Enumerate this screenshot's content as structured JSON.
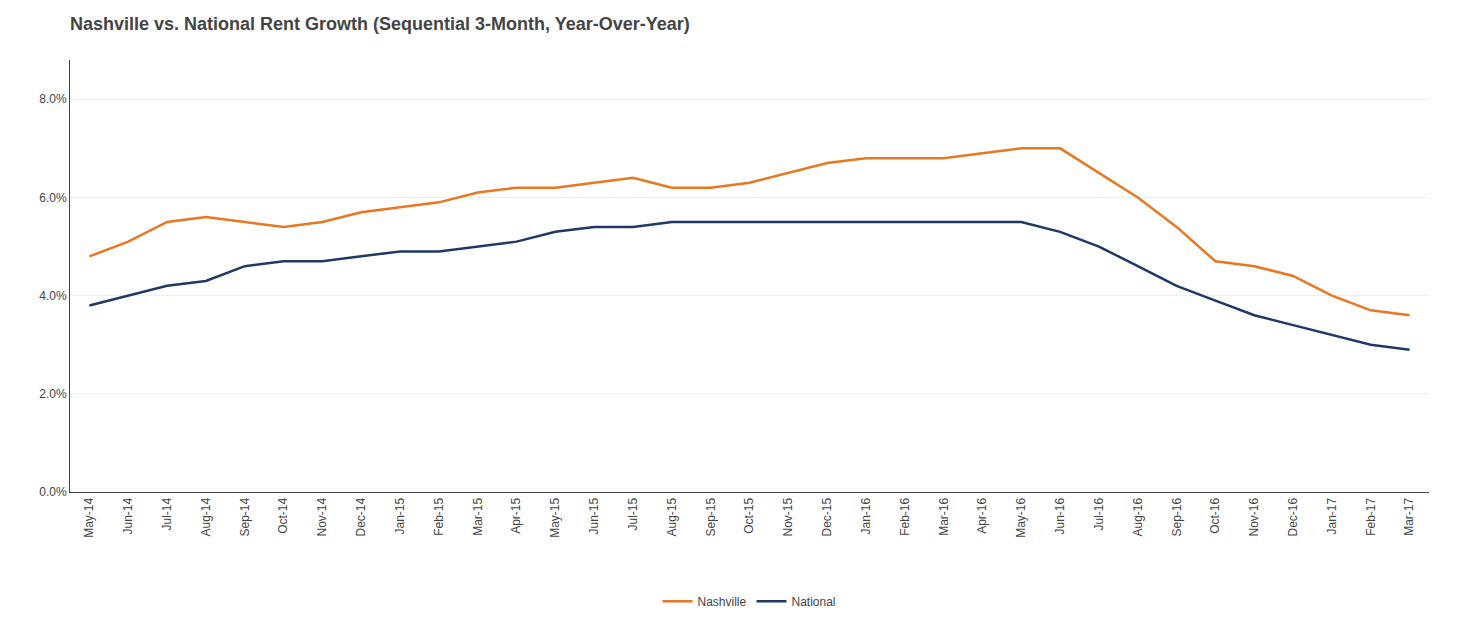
{
  "chart_data": {
    "type": "line",
    "title": "Nashville vs. National Rent Growth (Sequential 3-Month, Year-Over-Year)",
    "categories": [
      "May-14",
      "Jun-14",
      "Jul-14",
      "Aug-14",
      "Sep-14",
      "Oct-14",
      "Nov-14",
      "Dec-14",
      "Jan-15",
      "Feb-15",
      "Mar-15",
      "Apr-15",
      "May-15",
      "Jun-15",
      "Jul-15",
      "Aug-15",
      "Sep-15",
      "Oct-15",
      "Nov-15",
      "Dec-15",
      "Jan-16",
      "Feb-16",
      "Mar-16",
      "Apr-16",
      "May-16",
      "Jun-16",
      "Jul-16",
      "Aug-16",
      "Sep-16",
      "Oct-16",
      "Nov-16",
      "Dec-16",
      "Jan-17",
      "Feb-17",
      "Mar-17"
    ],
    "series": [
      {
        "name": "Nashville",
        "color": "#E87722",
        "values": [
          0.048,
          0.051,
          0.055,
          0.056,
          0.055,
          0.054,
          0.055,
          0.057,
          0.058,
          0.059,
          0.061,
          0.062,
          0.062,
          0.063,
          0.064,
          0.062,
          0.062,
          0.063,
          0.065,
          0.067,
          0.068,
          0.068,
          0.068,
          0.069,
          0.07,
          0.07,
          0.065,
          0.06,
          0.054,
          0.047,
          0.046,
          0.044,
          0.04,
          0.037,
          0.036
        ]
      },
      {
        "name": "National",
        "color": "#1F3864",
        "values": [
          0.038,
          0.04,
          0.042,
          0.043,
          0.046,
          0.047,
          0.047,
          0.048,
          0.049,
          0.049,
          0.05,
          0.051,
          0.053,
          0.054,
          0.054,
          0.055,
          0.055,
          0.055,
          0.055,
          0.055,
          0.055,
          0.055,
          0.055,
          0.055,
          0.055,
          0.053,
          0.05,
          0.046,
          0.042,
          0.039,
          0.036,
          0.034,
          0.032,
          0.03,
          0.029
        ]
      }
    ],
    "ylim": [
      0.0,
      0.088
    ],
    "yticks": [
      {
        "value": 0.0,
        "label": "0.0%"
      },
      {
        "value": 0.02,
        "label": "2.0%"
      },
      {
        "value": 0.04,
        "label": "4.0%"
      },
      {
        "value": 0.06,
        "label": "6.0%"
      },
      {
        "value": 0.08,
        "label": "8.0%"
      }
    ],
    "grid": true,
    "legend": "bottom"
  }
}
